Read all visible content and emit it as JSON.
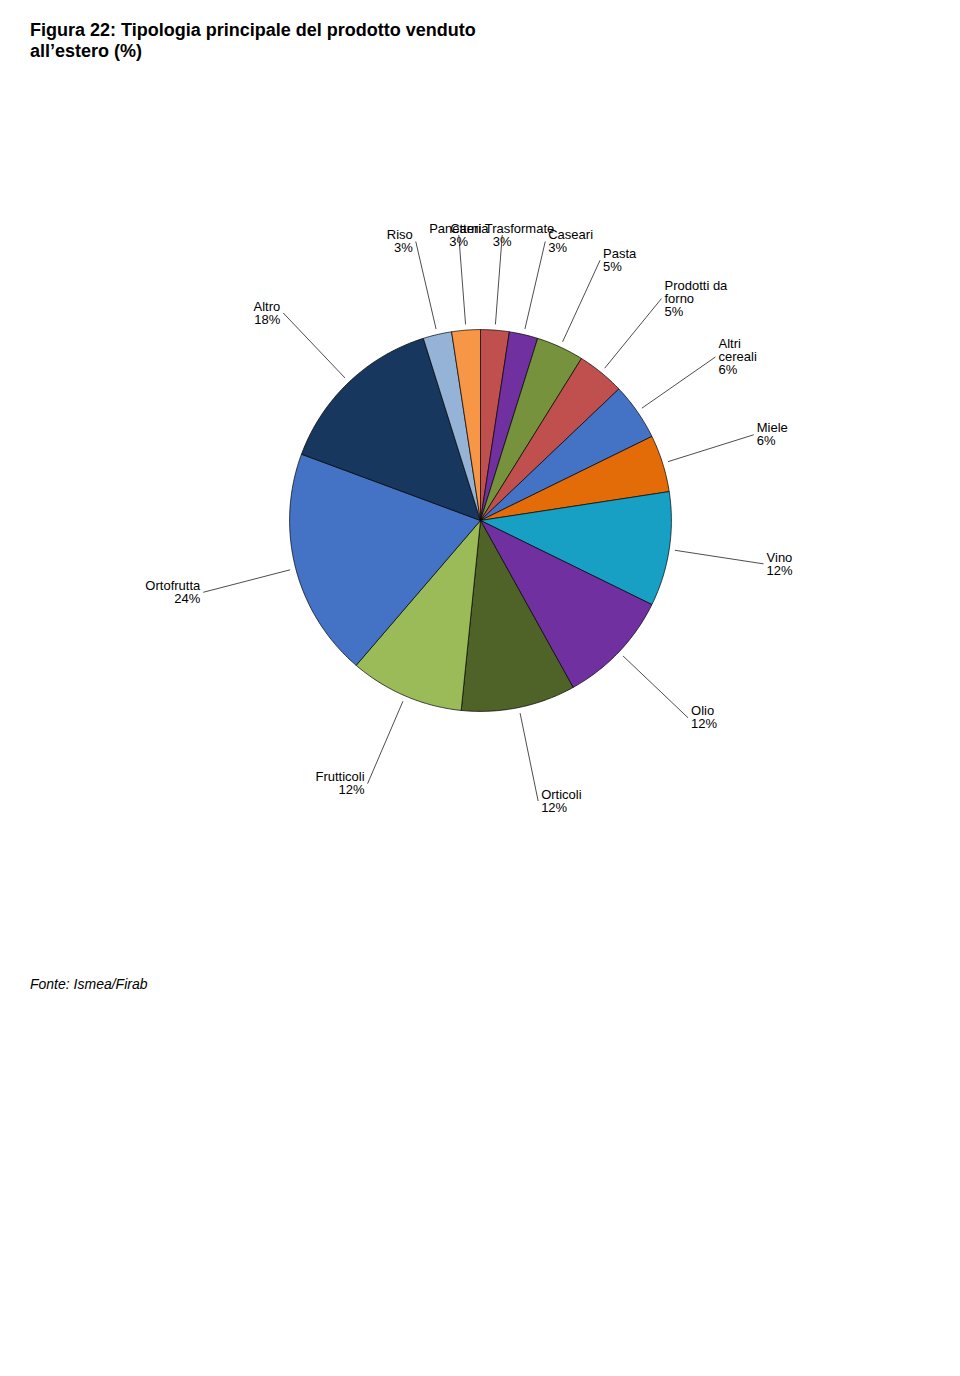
{
  "chart_data": {
    "type": "pie",
    "title": "Figura 22: Tipologia principale del prodotto venduto\nall’estero (%)",
    "caption": "Fonte: Ismea/Firab",
    "categories": [
      "Carni Trasformate",
      "Caseari",
      "Pasta",
      "Prodotti da\nforno",
      "Altri\ncereali",
      "Miele",
      "Vino",
      "Olio",
      "Orticoli",
      "Frutticoli",
      "Ortofrutta",
      "Altro",
      "Riso",
      "Panetteria"
    ],
    "values": [
      3,
      3,
      5,
      5,
      6,
      6,
      12,
      12,
      12,
      12,
      24,
      18,
      3,
      3
    ],
    "value_labels": [
      "3%",
      "3%",
      "5%",
      "5%",
      "6%",
      "6%",
      "12%",
      "12%",
      "12%",
      "12%",
      "24%",
      "18%",
      "3%",
      "3%"
    ],
    "colors": [
      "#C0504D",
      "#7030A0",
      "#76923C",
      "#C0504D",
      "#4472C4",
      "#E36C09",
      "#17A0C4",
      "#7030A0",
      "#4F6228",
      "#9BBB59",
      "#4472C4",
      "#17375E",
      "#95B3D7",
      "#F79646"
    ],
    "data_labels": true
  }
}
